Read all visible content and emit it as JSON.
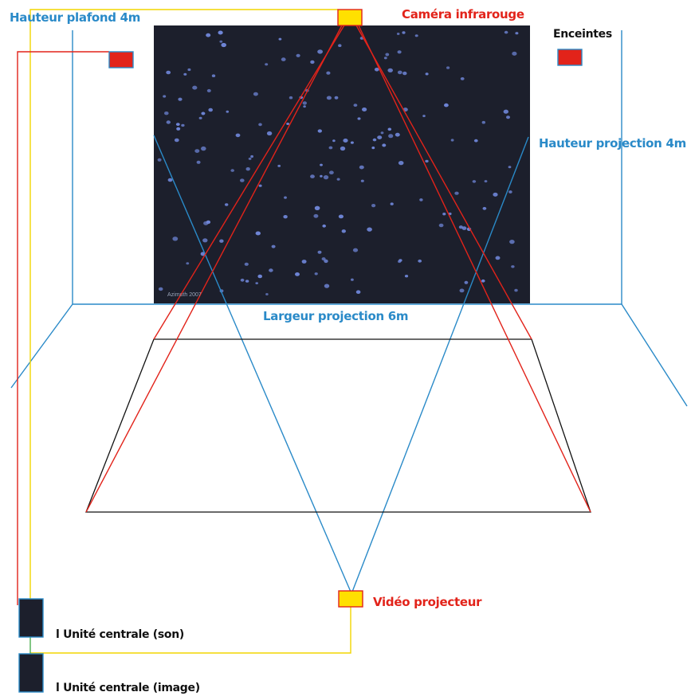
{
  "labels": {
    "ceiling_height": "Hauteur plafond 4m",
    "ir_camera": "Caméra infrarouge",
    "speakers": "Enceintes",
    "projection_height": "Hauteur projection 4m",
    "projection_width": "Largeur projection 6m",
    "video_projector": "Vidéo projecteur",
    "cpu_sound": "l Unité centrale (son)",
    "cpu_image": "l Unité centrale (image)",
    "screen_credit": "Azimuth 2007"
  },
  "colors": {
    "blue": "#2a8ac8",
    "red": "#e2231a",
    "yellow": "#ffe000",
    "yellow_line": "#f2d600",
    "screen": "#1c1f2c",
    "particle": "#6f86d8",
    "unit": "#1c1f2c"
  },
  "icons": {
    "camera": "yellow-box",
    "projector": "yellow-box",
    "speaker": "red-box",
    "computer": "dark-box"
  }
}
